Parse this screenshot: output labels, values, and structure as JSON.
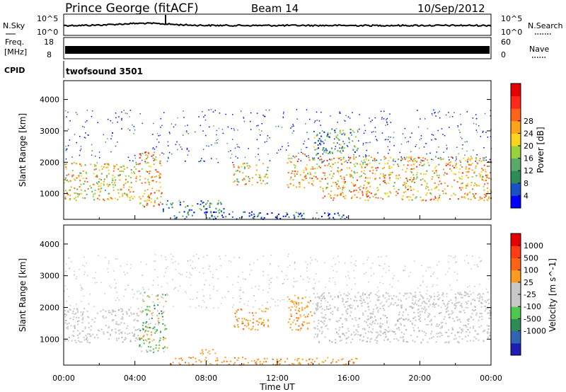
{
  "header": {
    "station": "Prince George (fitACF)",
    "beam": "Beam 14",
    "date": "10/Sep/2012"
  },
  "noise_panel": {
    "left_label": "N.Sky",
    "right_label": "N.Search",
    "right_label_style": "dotted",
    "left_ticks": [
      "10^5",
      "10^0"
    ],
    "right_ticks": [
      "10^5",
      "10^0"
    ]
  },
  "freq_panel": {
    "left_label_line1": "Freq.",
    "left_label_line2": "[MHz]",
    "right_label": "Nave",
    "right_label_style": "dotted",
    "left_ticks": [
      "18",
      "8"
    ],
    "right_ticks": [
      "60",
      "0"
    ]
  },
  "cpid_panel": {
    "label": "CPID",
    "program": "twofsound 3501"
  },
  "time_axis": {
    "label": "Time UT",
    "ticks": [
      "00:00",
      "04:00",
      "08:00",
      "12:00",
      "16:00",
      "20:00",
      "00:00"
    ]
  },
  "chart_data": [
    {
      "type": "heatmap",
      "panel": "power",
      "ylabel": "Slant Range [km]",
      "yticks": [
        "1000",
        "2000",
        "3000",
        "4000"
      ],
      "ylim": [
        180,
        4600
      ],
      "xlim": [
        0,
        24
      ],
      "colorbar_label": "Power [dB]",
      "colorbar_ticks": [
        "4",
        "8",
        "12",
        "16",
        "20",
        "24",
        "28"
      ],
      "colorbar_colors": [
        "#0000ff",
        "#1a50c8",
        "#2e8b57",
        "#5aa86a",
        "#96d23c",
        "#ffd21e",
        "#ffa51a",
        "#ff641a",
        "#ff2819",
        "#e60000"
      ],
      "regions": [
        {
          "t0": 0.0,
          "t1": 4.2,
          "r0": 800,
          "r1": 2000,
          "intensity": 0.55
        },
        {
          "t0": 4.2,
          "t1": 5.5,
          "r0": 600,
          "r1": 2400,
          "intensity": 0.65
        },
        {
          "t0": 5.5,
          "t1": 9.0,
          "r0": 400,
          "r1": 800,
          "intensity": 0.25
        },
        {
          "t0": 9.5,
          "t1": 11.5,
          "r0": 1300,
          "r1": 2000,
          "intensity": 0.55
        },
        {
          "t0": 12.5,
          "t1": 14.5,
          "r0": 1200,
          "r1": 2300,
          "intensity": 0.6
        },
        {
          "t0": 14.5,
          "t1": 24.0,
          "r0": 800,
          "r1": 2200,
          "intensity": 0.6
        },
        {
          "t0": 14.0,
          "t1": 16.5,
          "r0": 2300,
          "r1": 3100,
          "intensity": 0.3
        },
        {
          "t0": 6.0,
          "t1": 16.0,
          "r0": 180,
          "r1": 450,
          "intensity": 0.15
        }
      ]
    },
    {
      "type": "heatmap",
      "panel": "velocity",
      "ylabel": "Slant Range [km]",
      "yticks": [
        "1000",
        "2000",
        "3000",
        "4000"
      ],
      "ylim": [
        180,
        4600
      ],
      "xlim": [
        0,
        24
      ],
      "colorbar_label": "Velocity [m s^-1]",
      "colorbar_ticks": [
        "1000",
        "500",
        "100",
        "25",
        "-25",
        "-100",
        "-500",
        "-1000"
      ],
      "colorbar_colors": [
        "#1e1eb4",
        "#3264b4",
        "#2e8b57",
        "#50c850",
        "#c8c8c8",
        "#c8c8c8",
        "#ff9b1e",
        "#ff6414",
        "#ff3c14",
        "#e60000"
      ],
      "regions": [
        {
          "t0": 0.0,
          "t1": 4.2,
          "r0": 900,
          "r1": 2000,
          "class": "ground"
        },
        {
          "t0": 4.2,
          "t1": 5.8,
          "r0": 600,
          "r1": 2500,
          "class": "mixed"
        },
        {
          "t0": 7.0,
          "t1": 8.5,
          "r0": 550,
          "r1": 700,
          "class": "away"
        },
        {
          "t0": 9.5,
          "t1": 11.5,
          "r0": 1300,
          "r1": 2000,
          "class": "away"
        },
        {
          "t0": 12.5,
          "t1": 14.0,
          "r0": 1300,
          "r1": 2400,
          "class": "away"
        },
        {
          "t0": 14.0,
          "t1": 24.0,
          "r0": 900,
          "r1": 2500,
          "class": "ground"
        },
        {
          "t0": 6.0,
          "t1": 16.5,
          "r0": 180,
          "r1": 450,
          "class": "away"
        }
      ]
    }
  ]
}
